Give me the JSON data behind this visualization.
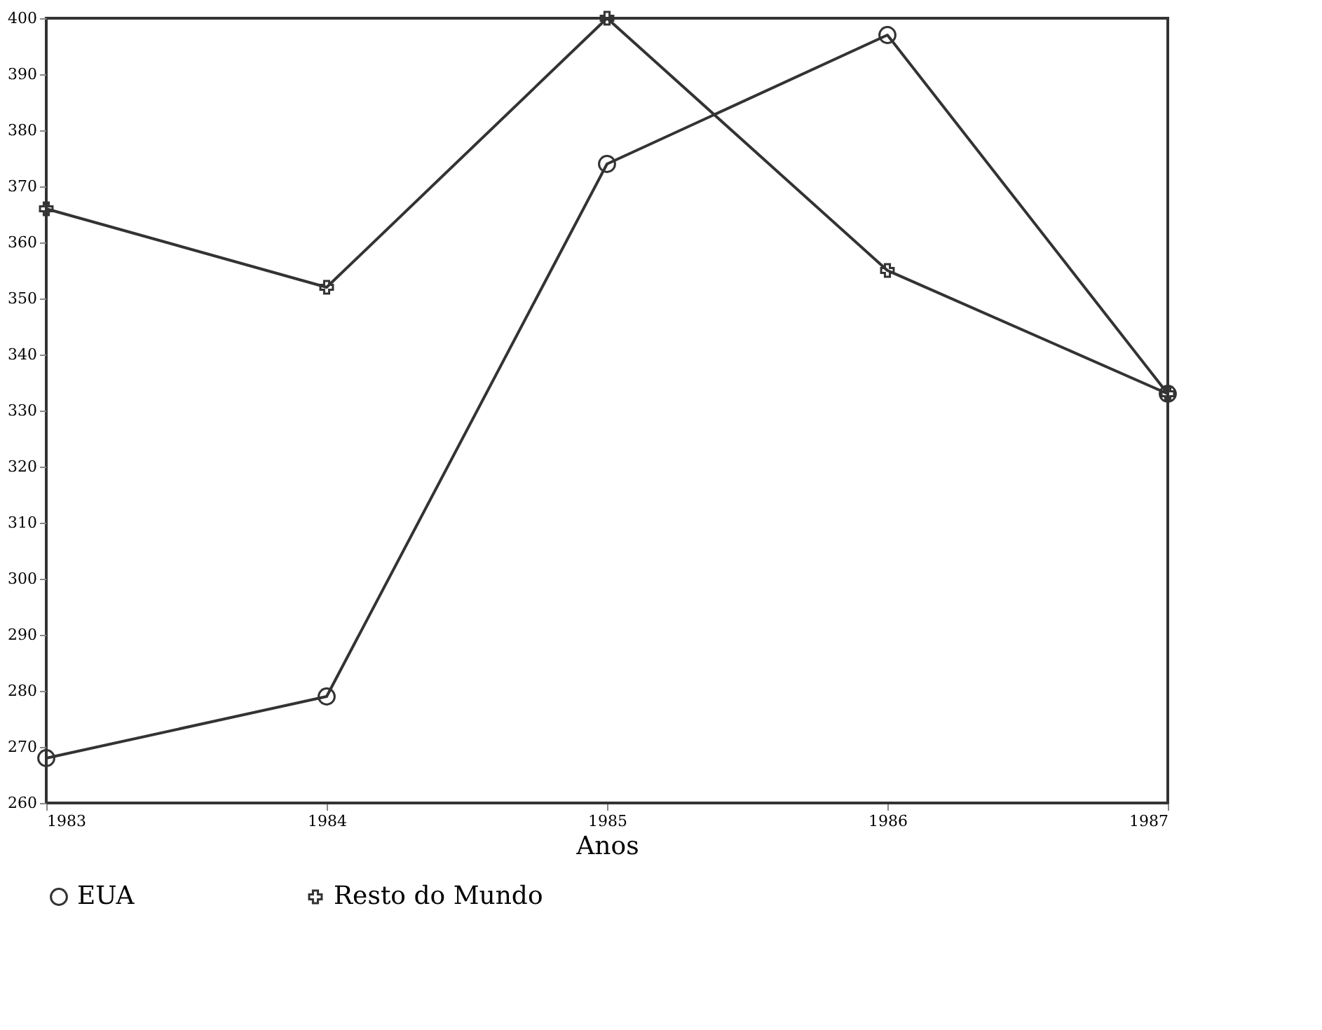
{
  "chart_data": {
    "type": "line",
    "xlabel": "Anos",
    "categories": [
      "1983",
      "1984",
      "1985",
      "1986",
      "1987"
    ],
    "series": [
      {
        "name": "EUA",
        "color": "#333333",
        "marker": "circle",
        "values": [
          268,
          279,
          374,
          397,
          333
        ]
      },
      {
        "name": "Resto do Mundo",
        "color": "#333333",
        "marker": "cross",
        "values": [
          366,
          352,
          400,
          355,
          333
        ]
      }
    ],
    "ylim": [
      260,
      400
    ],
    "yticks": [
      260,
      270,
      280,
      290,
      300,
      310,
      320,
      330,
      340,
      350,
      360,
      370,
      380,
      390,
      400
    ],
    "grid": false,
    "legend": "bottom",
    "line_style": "solid"
  }
}
